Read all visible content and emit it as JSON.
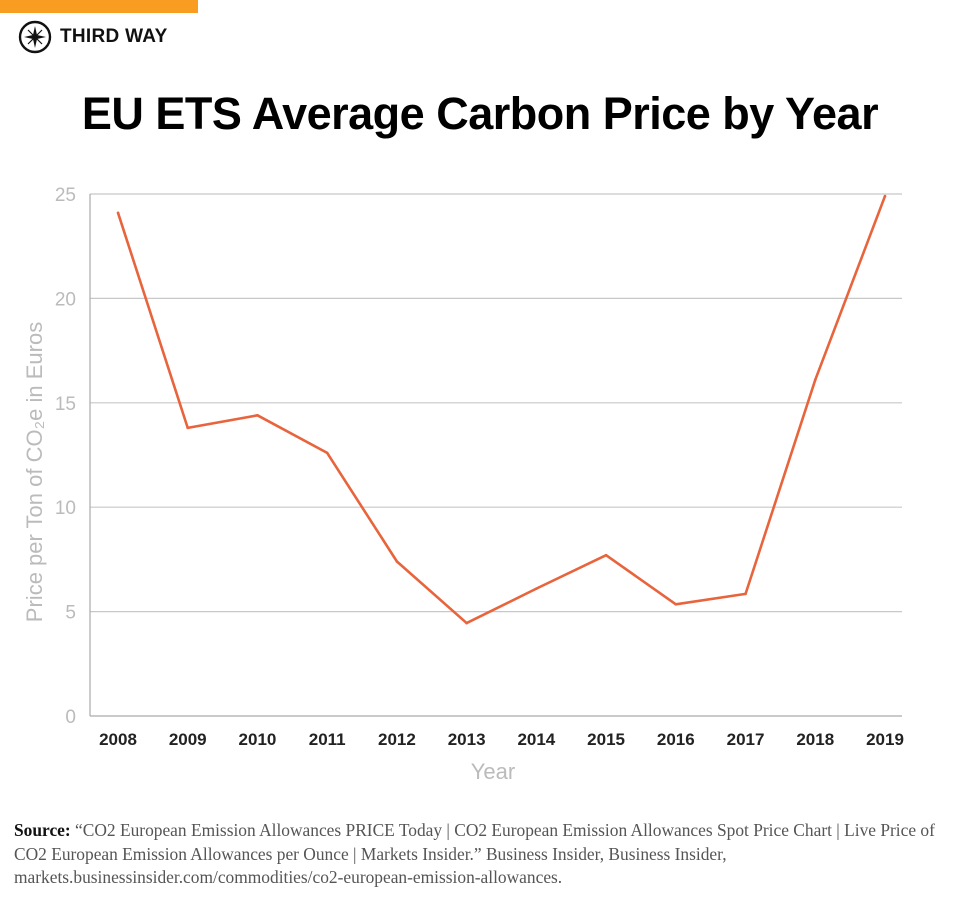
{
  "brand": {
    "name": "THIRD WAY",
    "accent": "#f89c22"
  },
  "chart_data": {
    "type": "line",
    "title": "EU ETS Average Carbon Price by Year",
    "xlabel": "Year",
    "ylabel": "Price per Ton of CO₂e in Euros",
    "categories": [
      "2008",
      "2009",
      "2010",
      "2011",
      "2012",
      "2013",
      "2014",
      "2015",
      "2016",
      "2017",
      "2018",
      "2019"
    ],
    "values": [
      24.1,
      13.8,
      14.4,
      12.6,
      7.4,
      4.45,
      6.1,
      7.7,
      5.35,
      5.85,
      16.1,
      24.9
    ],
    "ylim": [
      0,
      25
    ],
    "yticks": [
      0,
      5,
      10,
      15,
      20,
      25
    ],
    "grid": true,
    "line_color": "#e8643c"
  },
  "source": {
    "label": "Source:",
    "text": "“CO2 European Emission Allowances PRICE Today | CO2 European Emission Allowances Spot Price Chart | Live Price of CO2 European Emission Allowances per Ounce | Markets Insider.” Business Insider, Business Insider, markets.businessinsider.com/commodities/co2-european-emission-allowances."
  }
}
